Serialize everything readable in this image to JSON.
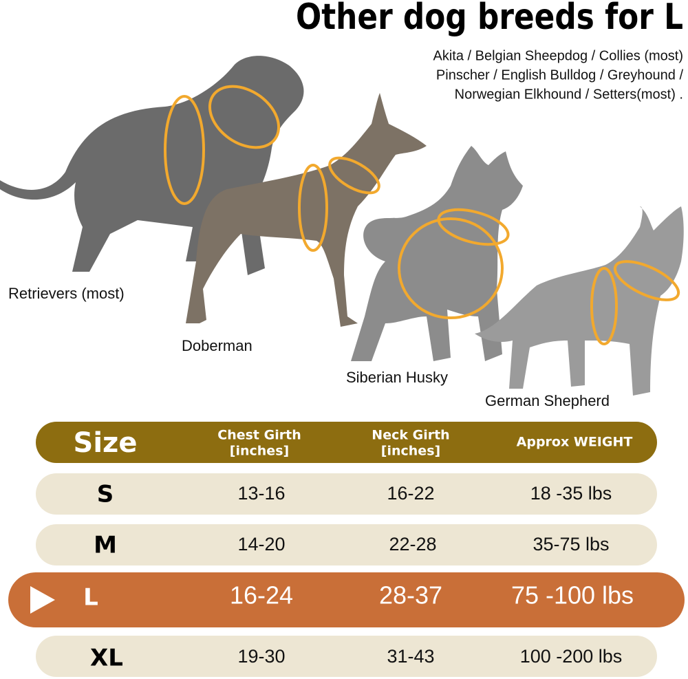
{
  "header": {
    "title": "Other dog breeds for L",
    "breeds": [
      "Akita / Belgian Sheepdog / Collies (most)",
      "Pinscher / English Bulldog / Greyhound /",
      "Norwegian Elkhound / Setters(most) ."
    ]
  },
  "dogs": [
    {
      "label": "Retrievers (most)"
    },
    {
      "label": "Doberman"
    },
    {
      "label": "Siberian Husky"
    },
    {
      "label": "German Shepherd"
    }
  ],
  "table": {
    "headers": [
      [
        "Size"
      ],
      [
        "Chest Girth",
        "[inches]"
      ],
      [
        "Neck Girth",
        "[inches]"
      ],
      [
        "Approx WEIGHT"
      ]
    ],
    "rows": [
      [
        "S",
        "13-16",
        "16-22",
        "18 -35 lbs"
      ],
      [
        "M",
        "14-20",
        "22-28",
        "35-75 lbs"
      ],
      [
        "L",
        "16-24",
        "28-37",
        "75 -100 lbs"
      ],
      [
        "XL",
        "19-30",
        "31-43",
        "100 -200 lbs"
      ]
    ]
  }
}
